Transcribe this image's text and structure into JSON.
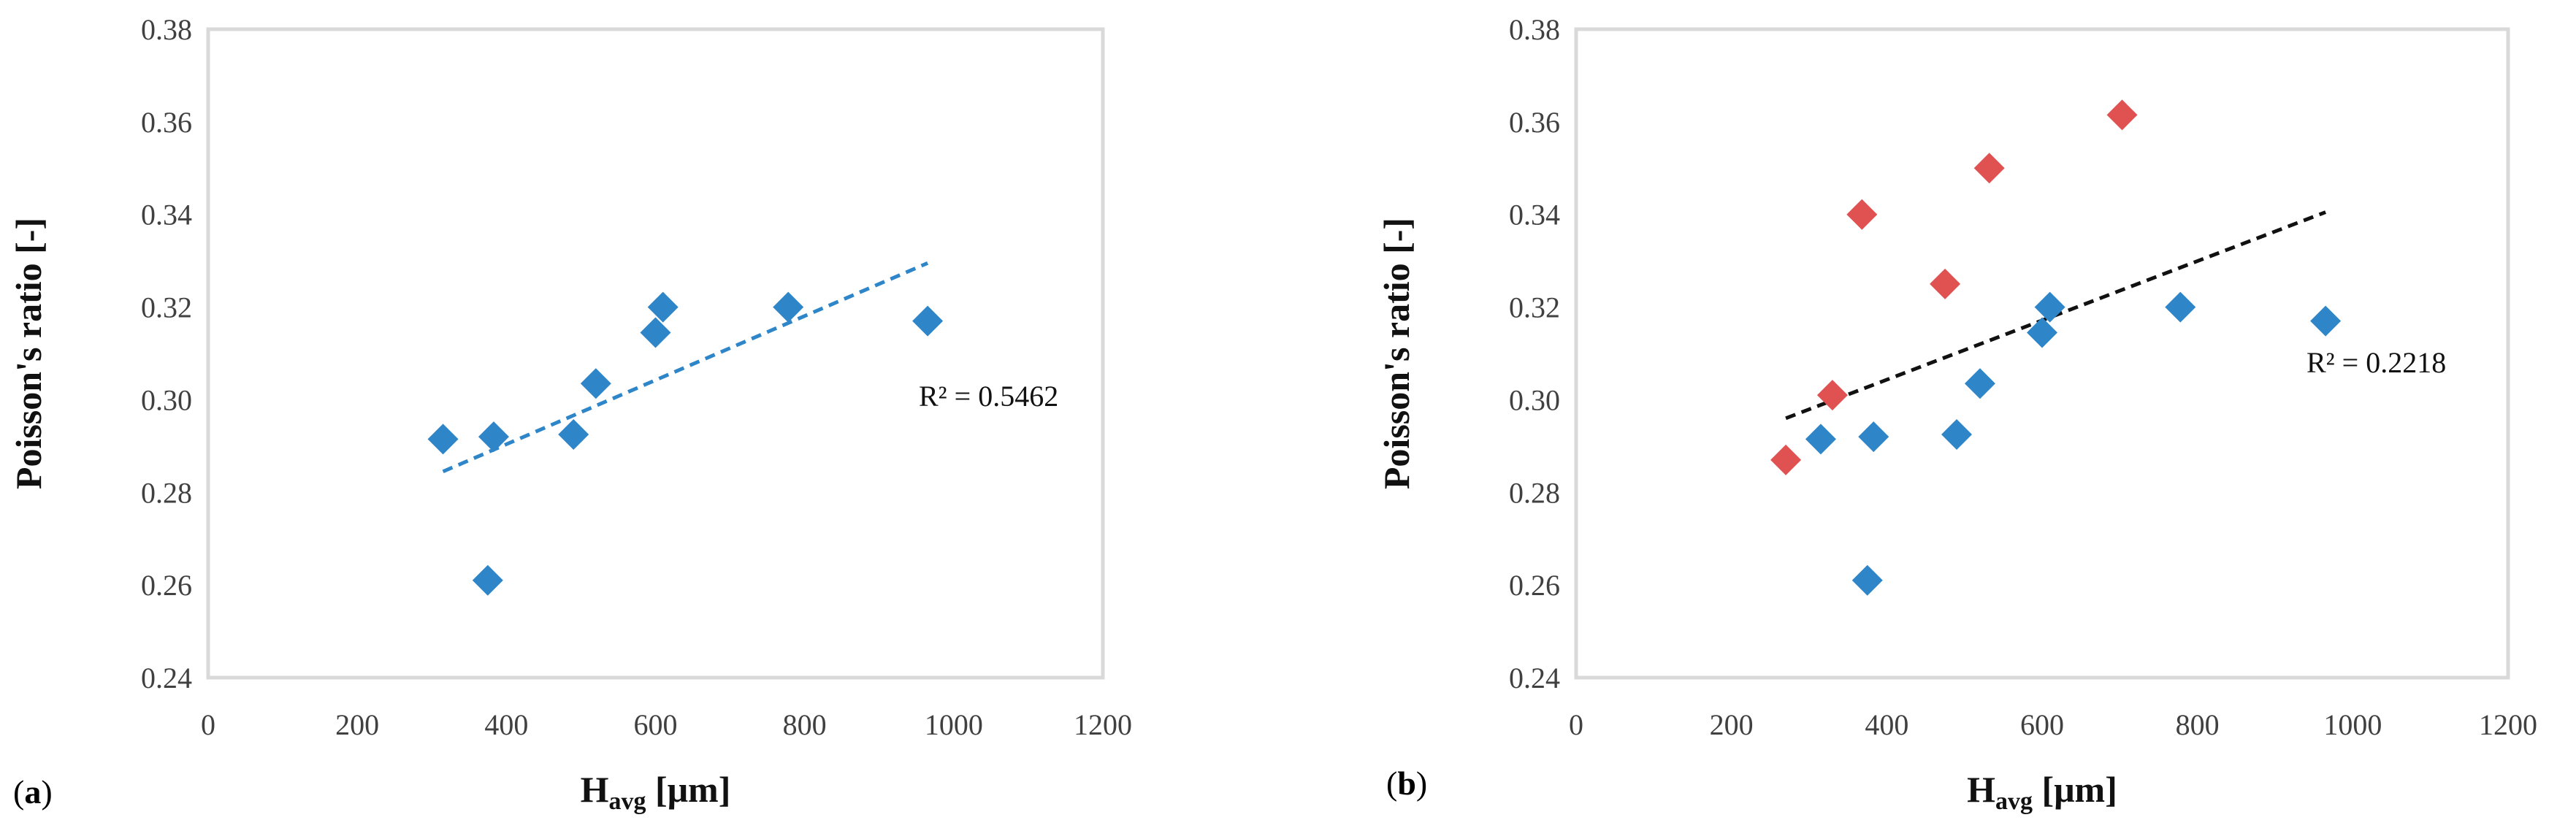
{
  "figure": {
    "panels": [
      "a",
      "b"
    ]
  },
  "chart_data": [
    {
      "type": "scatter",
      "panel_label": "a",
      "title": "",
      "xlabel": "H",
      "xlabel_sub": "avg",
      "xlabel_unit": " [μm]",
      "ylabel": "Poisson's ratio [-]",
      "xlim": [
        0,
        1200
      ],
      "ylim": [
        0.24,
        0.38
      ],
      "xticks": [
        "0",
        "200",
        "400",
        "600",
        "800",
        "1000",
        "1200"
      ],
      "yticks": [
        "0.24",
        "0.26",
        "0.28",
        "0.30",
        "0.32",
        "0.34",
        "0.36",
        "0.38"
      ],
      "grid": false,
      "series": [
        {
          "color": "#2e86c9",
          "marker": "diamond",
          "points": [
            {
              "x": 315,
              "y": 0.2915
            },
            {
              "x": 375,
              "y": 0.261
            },
            {
              "x": 383,
              "y": 0.292
            },
            {
              "x": 490,
              "y": 0.2925
            },
            {
              "x": 520,
              "y": 0.3035
            },
            {
              "x": 600,
              "y": 0.3145
            },
            {
              "x": 610,
              "y": 0.32
            },
            {
              "x": 778,
              "y": 0.32
            },
            {
              "x": 965,
              "y": 0.317
            }
          ]
        }
      ],
      "trendline": {
        "x": [
          315,
          965
        ],
        "y": [
          0.2845,
          0.3295
        ],
        "color": "#2e86c9",
        "style": "dashed"
      },
      "annotations": [
        {
          "text": "R² = 0.5462"
        }
      ]
    },
    {
      "type": "scatter",
      "panel_label": "b",
      "title": "",
      "xlabel": "H",
      "xlabel_sub": "avg",
      "xlabel_unit": " [μm]",
      "ylabel": "Poisson's ratio [-]",
      "xlim": [
        0,
        1200
      ],
      "ylim": [
        0.24,
        0.38
      ],
      "xticks": [
        "0",
        "200",
        "400",
        "600",
        "800",
        "1000",
        "1200"
      ],
      "yticks": [
        "0.24",
        "0.26",
        "0.28",
        "0.30",
        "0.32",
        "0.34",
        "0.36",
        "0.38"
      ],
      "grid": false,
      "series": [
        {
          "color": "#2e86c9",
          "marker": "diamond",
          "points": [
            {
              "x": 315,
              "y": 0.2915
            },
            {
              "x": 375,
              "y": 0.261
            },
            {
              "x": 383,
              "y": 0.292
            },
            {
              "x": 490,
              "y": 0.2925
            },
            {
              "x": 520,
              "y": 0.3035
            },
            {
              "x": 600,
              "y": 0.3145
            },
            {
              "x": 610,
              "y": 0.32
            },
            {
              "x": 778,
              "y": 0.32
            },
            {
              "x": 965,
              "y": 0.317
            }
          ]
        },
        {
          "color": "#e05252",
          "marker": "diamond",
          "points": [
            {
              "x": 270,
              "y": 0.287
            },
            {
              "x": 330,
              "y": 0.301
            },
            {
              "x": 368,
              "y": 0.34
            },
            {
              "x": 475,
              "y": 0.325
            },
            {
              "x": 532,
              "y": 0.35
            },
            {
              "x": 703,
              "y": 0.3615
            }
          ]
        }
      ],
      "trendline": {
        "x": [
          270,
          965
        ],
        "y": [
          0.296,
          0.3405
        ],
        "color": "#111111",
        "style": "dashed"
      },
      "annotations": [
        {
          "text": "R² = 0.2218"
        }
      ]
    }
  ]
}
